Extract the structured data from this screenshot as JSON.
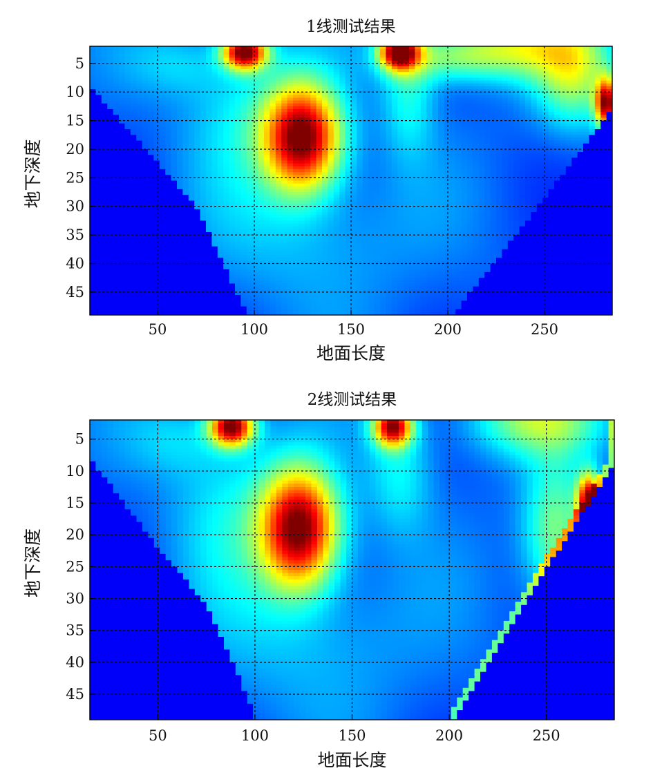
{
  "chart_data": [
    {
      "type": "heatmap",
      "title": "1线测试结果",
      "xlabel": "地面长度",
      "ylabel": "地下深度",
      "xlim": [
        15,
        285
      ],
      "ylim": [
        2,
        49
      ],
      "y_reversed": true,
      "xticks": [
        "50",
        "100",
        "150",
        "200",
        "250"
      ],
      "yticks": [
        "5",
        "10",
        "15",
        "20",
        "25",
        "30",
        "35",
        "40",
        "45"
      ],
      "grid": true,
      "colormap": "jet",
      "hotspots": [
        {
          "x": 125,
          "y": 18,
          "level": 1.0
        },
        {
          "x": 95,
          "y": 3,
          "level": 1.0
        },
        {
          "x": 175,
          "y": 3,
          "level": 0.95
        },
        {
          "x": 282,
          "y": 12,
          "level": 0.9
        }
      ],
      "boundary_left": [
        [
          15,
          9
        ],
        [
          70,
          30
        ],
        [
          95,
          48
        ]
      ],
      "boundary_right": [
        [
          285,
          13
        ],
        [
          240,
          33
        ],
        [
          205,
          48
        ]
      ]
    },
    {
      "type": "heatmap",
      "title": "2线测试结果",
      "xlabel": "地面长度",
      "ylabel": "地下深度",
      "xlim": [
        15,
        285
      ],
      "ylim": [
        2,
        49
      ],
      "y_reversed": true,
      "xticks": [
        "50",
        "100",
        "150",
        "200",
        "250"
      ],
      "yticks": [
        "5",
        "10",
        "15",
        "20",
        "25",
        "30",
        "35",
        "40",
        "45"
      ],
      "grid": true,
      "colormap": "jet",
      "hotspots": [
        {
          "x": 123,
          "y": 19,
          "level": 1.0
        },
        {
          "x": 88,
          "y": 3,
          "level": 1.0
        },
        {
          "x": 171,
          "y": 3,
          "level": 0.9
        },
        {
          "x": 272,
          "y": 15,
          "level": 1.0
        }
      ],
      "boundary_left": [
        [
          15,
          8
        ],
        [
          50,
          22
        ],
        [
          75,
          31
        ],
        [
          100,
          48
        ]
      ],
      "boundary_right": [
        [
          285,
          9
        ],
        [
          240,
          30
        ],
        [
          205,
          48
        ]
      ]
    }
  ]
}
